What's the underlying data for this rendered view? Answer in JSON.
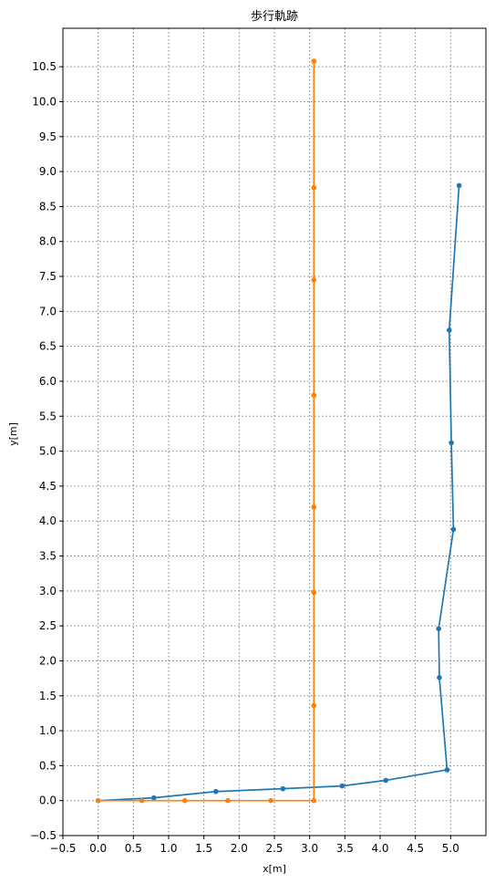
{
  "chart_data": {
    "type": "line",
    "title": "歩行軌跡",
    "xlabel": "x[m]",
    "ylabel": "y[m]",
    "xlim": [
      -0.5,
      5.5
    ],
    "ylim": [
      -0.5,
      11.05
    ],
    "x_ticks": [
      -0.5,
      0.0,
      0.5,
      1.0,
      1.5,
      2.0,
      2.5,
      3.0,
      3.5,
      4.0,
      4.5,
      5.0
    ],
    "x_tick_labels": [
      "−0.5",
      "0.0",
      "0.5",
      "1.0",
      "1.5",
      "2.0",
      "2.5",
      "3.0",
      "3.5",
      "4.0",
      "4.5",
      "5.0"
    ],
    "y_ticks": [
      -0.5,
      0.0,
      0.5,
      1.0,
      1.5,
      2.0,
      2.5,
      3.0,
      3.5,
      4.0,
      4.5,
      5.0,
      5.5,
      6.0,
      6.5,
      7.0,
      7.5,
      8.0,
      8.5,
      9.0,
      9.5,
      10.0,
      10.5
    ],
    "y_tick_labels": [
      "−0.5",
      "0.0",
      "0.5",
      "1.0",
      "1.5",
      "2.0",
      "2.5",
      "3.0",
      "3.5",
      "4.0",
      "4.5",
      "5.0",
      "5.5",
      "6.0",
      "6.5",
      "7.0",
      "7.5",
      "8.0",
      "8.5",
      "9.0",
      "9.5",
      "10.0",
      "10.5"
    ],
    "grid": true,
    "grid_style": "dotted",
    "series": [
      {
        "color": "#1f77b4",
        "x": [
          0.0,
          0.79,
          1.67,
          2.62,
          3.46,
          4.08,
          4.95,
          4.84,
          4.83,
          5.04,
          5.01,
          4.98,
          5.12
        ],
        "y": [
          0.0,
          0.04,
          0.13,
          0.17,
          0.21,
          0.29,
          0.44,
          1.76,
          2.46,
          3.88,
          5.12,
          6.73,
          8.8
        ]
      },
      {
        "color": "#ff7f0e",
        "x": [
          0.0,
          0.62,
          1.23,
          1.84,
          2.45,
          3.06,
          3.06,
          3.06,
          3.06,
          3.06,
          3.06,
          3.06,
          3.06,
          3.06
        ],
        "y": [
          0.0,
          0.0,
          0.0,
          0.0,
          0.0,
          0.0,
          1.36,
          2.98,
          4.2,
          5.8,
          7.45,
          8.77,
          10.58,
          10.58
        ]
      }
    ]
  }
}
